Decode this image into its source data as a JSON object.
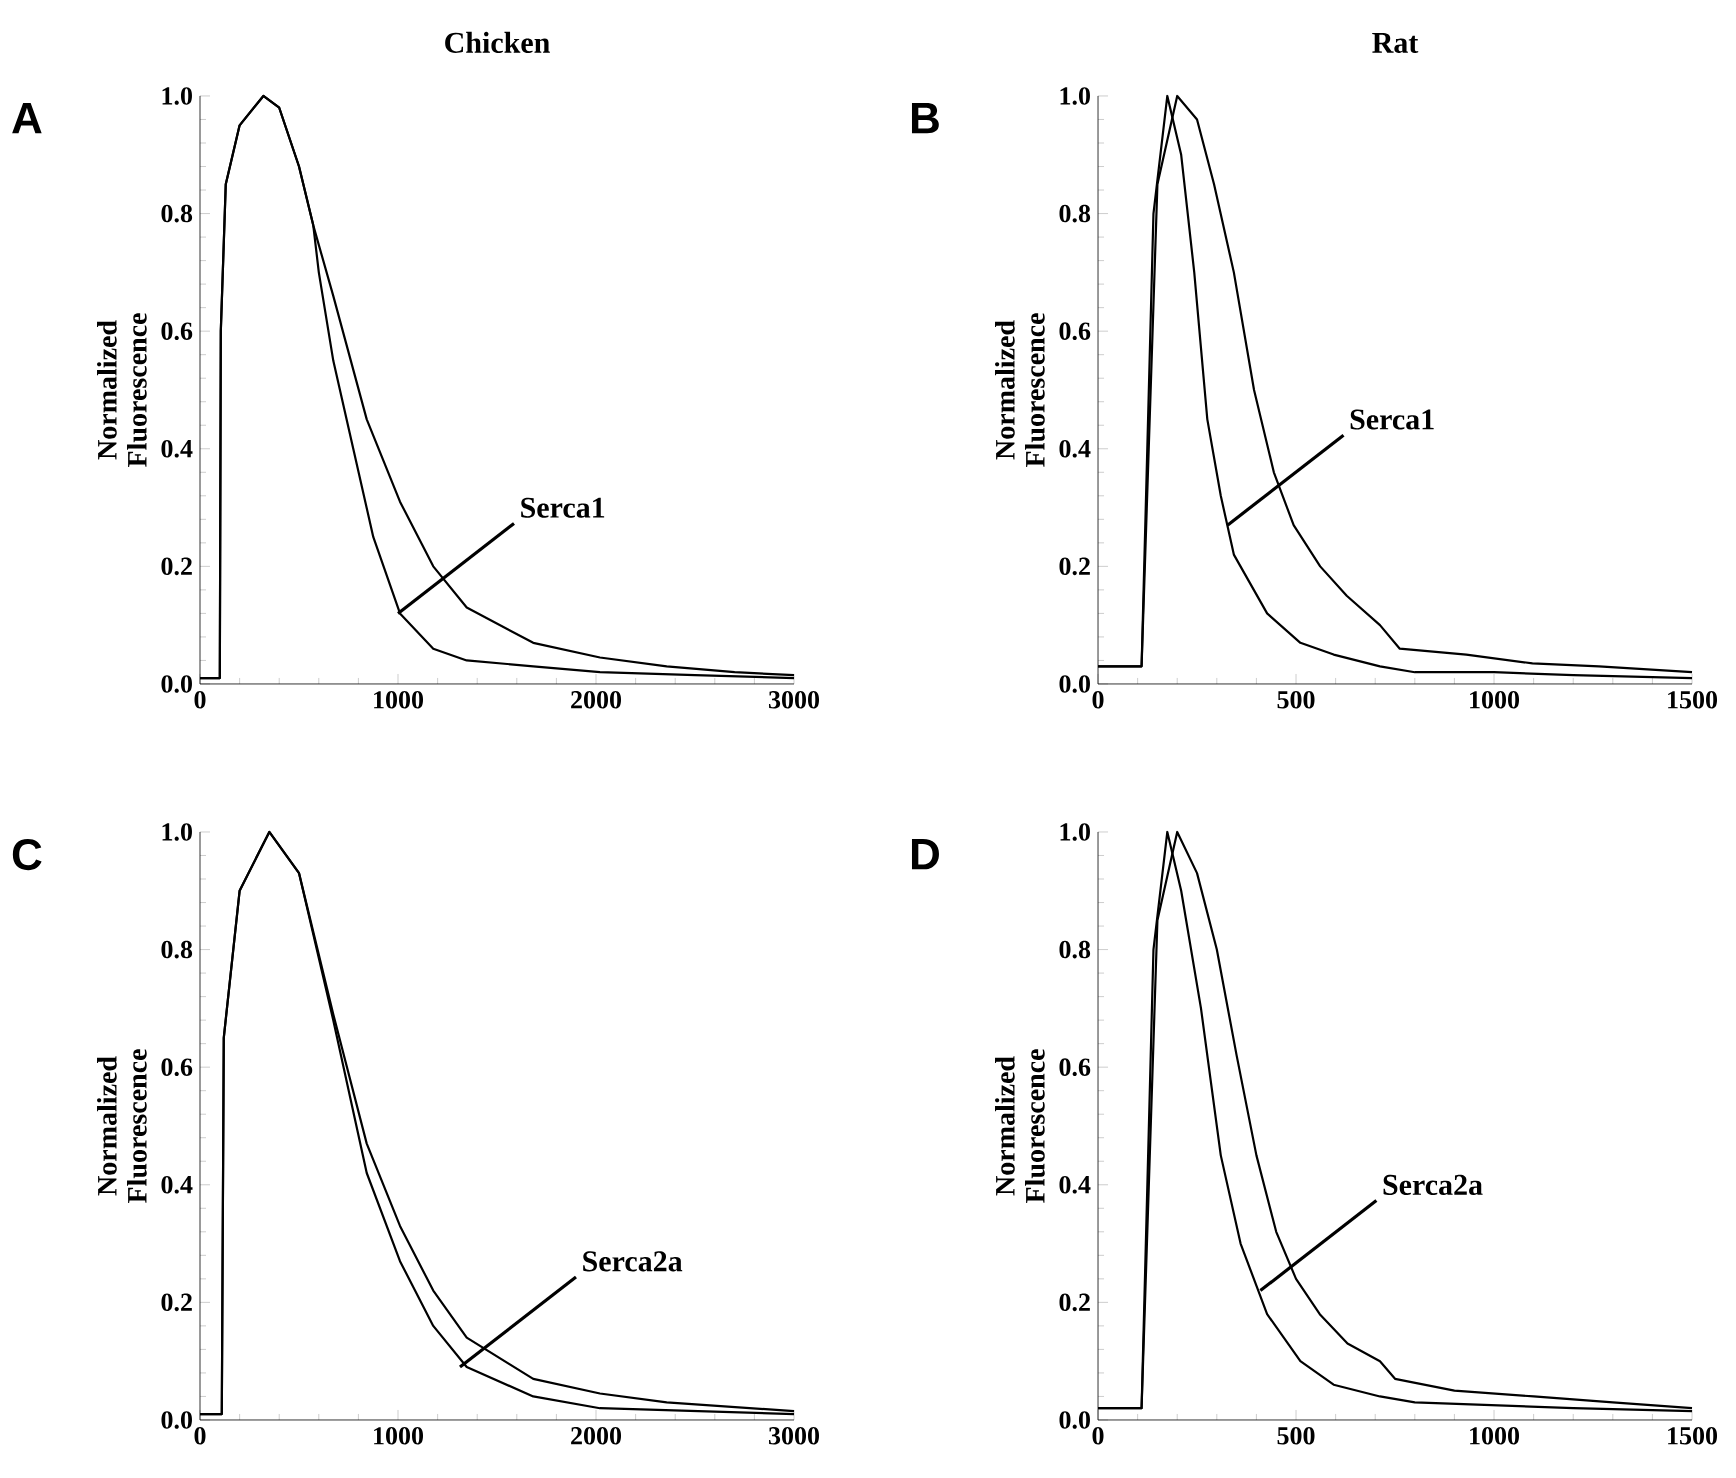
{
  "chart_data": [
    {
      "type": "line",
      "title": "Chicken",
      "ylabel": "Normalized Fluorescence",
      "xlim": [
        0,
        3000
      ],
      "xticks": [
        0,
        1000,
        2000,
        3000
      ],
      "ylim": [
        0,
        1
      ],
      "yticks": [
        {
          "value": 0,
          "label": "0.0"
        },
        {
          "value": 0.2,
          "label": "0.2"
        },
        {
          "value": 0.4,
          "label": "0.4"
        },
        {
          "value": 0.6,
          "label": "0.6"
        },
        {
          "value": 0.8,
          "label": "0.8"
        },
        {
          "value": 1,
          "label": "1.0"
        }
      ],
      "annotations": [
        "A",
        {
          "text": "Serca1",
          "x": 1000,
          "y": 0.12
        }
      ],
      "series": [
        {
          "color": "#000000",
          "x": [
            0,
            100,
            105,
            130,
            200,
            320,
            400,
            500,
            572,
            600,
            673,
            774,
            875,
            1010,
            1178,
            1347,
            1683,
            2020,
            2500,
            3000
          ],
          "values": [
            0.01,
            0.01,
            0.6,
            0.85,
            0.95,
            1.0,
            0.98,
            0.88,
            0.78,
            0.7,
            0.55,
            0.4,
            0.25,
            0.12,
            0.06,
            0.04,
            0.03,
            0.02,
            0.015,
            0.01
          ]
        },
        {
          "color": "#000000",
          "x": [
            0,
            100,
            105,
            130,
            200,
            320,
            400,
            500,
            572,
            673,
            842,
            1010,
            1178,
            1347,
            1683,
            2020,
            2357,
            2700,
            3000
          ],
          "values": [
            0.01,
            0.01,
            0.6,
            0.85,
            0.95,
            1.0,
            0.98,
            0.88,
            0.78,
            0.66,
            0.45,
            0.31,
            0.2,
            0.13,
            0.07,
            0.045,
            0.03,
            0.02,
            0.015
          ]
        }
      ]
    },
    {
      "type": "line",
      "title": "Rat",
      "ylabel": "Normalized Fluorescence",
      "xlim": [
        0,
        1500
      ],
      "xticks": [
        0,
        500,
        1000,
        1500
      ],
      "ylim": [
        0,
        1
      ],
      "yticks": [
        {
          "value": 0,
          "label": "0.0"
        },
        {
          "value": 0.2,
          "label": "0.2"
        },
        {
          "value": 0.4,
          "label": "0.4"
        },
        {
          "value": 0.6,
          "label": "0.6"
        },
        {
          "value": 0.8,
          "label": "0.8"
        },
        {
          "value": 1,
          "label": "1.0"
        }
      ],
      "annotations": [
        "B",
        {
          "text": "Serca1",
          "x": 327,
          "y": 0.27
        }
      ],
      "series": [
        {
          "color": "#000000",
          "x": [
            0,
            110,
            140,
            175,
            210,
            243,
            276,
            310,
            343,
            427,
            511,
            595,
            712,
            800,
            1000,
            1200,
            1500
          ],
          "values": [
            0.03,
            0.03,
            0.8,
            1.0,
            0.9,
            0.7,
            0.45,
            0.32,
            0.22,
            0.12,
            0.07,
            0.05,
            0.03,
            0.02,
            0.02,
            0.015,
            0.01
          ]
        },
        {
          "color": "#000000",
          "x": [
            0,
            110,
            150,
            200,
            250,
            293,
            343,
            394,
            444,
            494,
            561,
            628,
            712,
            762,
            930,
            1097,
            1265,
            1500
          ],
          "values": [
            0.03,
            0.03,
            0.85,
            1.0,
            0.96,
            0.85,
            0.7,
            0.5,
            0.36,
            0.27,
            0.2,
            0.15,
            0.1,
            0.06,
            0.05,
            0.035,
            0.03,
            0.02
          ]
        }
      ]
    },
    {
      "type": "line",
      "ylabel": "Normalized Fluorescence",
      "xlim": [
        0,
        3000
      ],
      "xticks": [
        0,
        1000,
        2000,
        3000
      ],
      "ylim": [
        0,
        1
      ],
      "yticks": [
        {
          "value": 0,
          "label": "0.0"
        },
        {
          "value": 0.2,
          "label": "0.2"
        },
        {
          "value": 0.4,
          "label": "0.4"
        },
        {
          "value": 0.6,
          "label": "0.6"
        },
        {
          "value": 0.8,
          "label": "0.8"
        },
        {
          "value": 1,
          "label": "1.0"
        }
      ],
      "annotations": [
        "C",
        {
          "text": "Serca2a",
          "x": 1313,
          "y": 0.09
        }
      ],
      "series": [
        {
          "color": "#000000",
          "x": [
            0,
            110,
            120,
            200,
            350,
            500,
            673,
            842,
            1010,
            1178,
            1347,
            1683,
            2020,
            3000
          ],
          "values": [
            0.01,
            0.01,
            0.65,
            0.9,
            1.0,
            0.93,
            0.68,
            0.42,
            0.27,
            0.16,
            0.09,
            0.04,
            0.02,
            0.01
          ]
        },
        {
          "color": "#000000",
          "x": [
            0,
            110,
            120,
            200,
            350,
            500,
            673,
            842,
            1010,
            1178,
            1347,
            1683,
            2020,
            2357,
            3000
          ],
          "values": [
            0.01,
            0.01,
            0.65,
            0.9,
            1.0,
            0.93,
            0.69,
            0.47,
            0.33,
            0.22,
            0.14,
            0.07,
            0.045,
            0.03,
            0.015
          ]
        }
      ]
    },
    {
      "type": "line",
      "ylabel": "Normalized Fluorescence",
      "xlim": [
        0,
        1500
      ],
      "xticks": [
        0,
        500,
        1000,
        1500
      ],
      "ylim": [
        0,
        1
      ],
      "yticks": [
        {
          "value": 0,
          "label": "0.0"
        },
        {
          "value": 0.2,
          "label": "0.2"
        },
        {
          "value": 0.4,
          "label": "0.4"
        },
        {
          "value": 0.6,
          "label": "0.6"
        },
        {
          "value": 0.8,
          "label": "0.8"
        },
        {
          "value": 1,
          "label": "1.0"
        }
      ],
      "annotations": [
        "D",
        {
          "text": "Serca2a",
          "x": 410,
          "y": 0.22
        }
      ],
      "series": [
        {
          "color": "#000000",
          "x": [
            0,
            110,
            140,
            175,
            210,
            260,
            310,
            360,
            427,
            511,
            595,
            712,
            800,
            1000,
            1200,
            1500
          ],
          "values": [
            0.02,
            0.02,
            0.8,
            1.0,
            0.9,
            0.7,
            0.45,
            0.3,
            0.18,
            0.1,
            0.06,
            0.04,
            0.03,
            0.025,
            0.02,
            0.015
          ]
        },
        {
          "color": "#000000",
          "x": [
            0,
            110,
            150,
            200,
            250,
            300,
            350,
            400,
            450,
            500,
            560,
            630,
            712,
            750,
            900,
            1100,
            1300,
            1500
          ],
          "values": [
            0.02,
            0.02,
            0.85,
            1.0,
            0.93,
            0.8,
            0.62,
            0.45,
            0.32,
            0.24,
            0.18,
            0.13,
            0.1,
            0.07,
            0.05,
            0.04,
            0.03,
            0.02
          ]
        }
      ]
    }
  ]
}
